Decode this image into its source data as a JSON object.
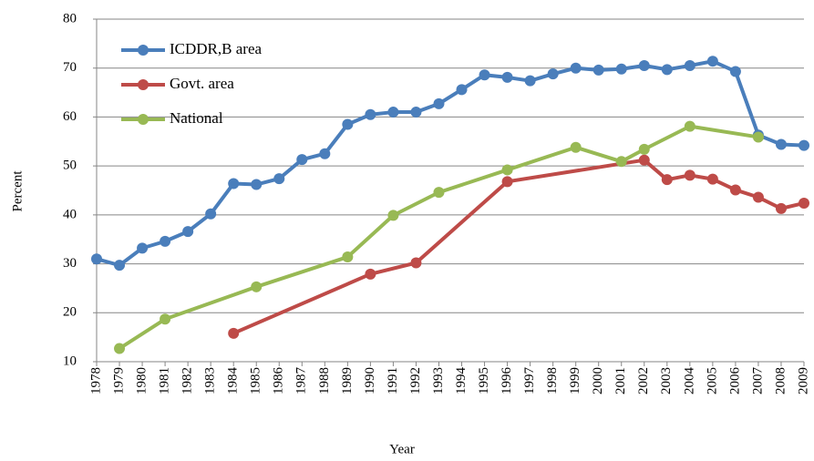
{
  "chart_data": {
    "type": "line",
    "x_label": "Year",
    "y_label": "Percent",
    "xlim": [
      1978,
      2009
    ],
    "xticks": [
      1978,
      1979,
      1980,
      1981,
      1982,
      1983,
      1984,
      1985,
      1986,
      1987,
      1988,
      1989,
      1990,
      1991,
      1992,
      1993,
      1994,
      1995,
      1996,
      1997,
      1998,
      1999,
      2000,
      2001,
      2002,
      2003,
      2004,
      2005,
      2006,
      2007,
      2008,
      2009
    ],
    "ylim": [
      10,
      80
    ],
    "yticks": [
      10,
      20,
      30,
      40,
      50,
      60,
      70,
      80
    ],
    "grid": true,
    "legend": "top-left",
    "series": [
      {
        "name": "ICDDR,B area",
        "color": "#4a7ebb",
        "x": [
          1978,
          1979,
          1980,
          1981,
          1982,
          1983,
          1984,
          1985,
          1986,
          1987,
          1988,
          1989,
          1990,
          1991,
          1992,
          1993,
          1994,
          1995,
          1996,
          1997,
          1998,
          1999,
          2000,
          2001,
          2002,
          2003,
          2004,
          2005,
          2006,
          2007,
          2008,
          2009
        ],
        "values": [
          31,
          29.7,
          33.2,
          34.6,
          36.6,
          40.2,
          46.4,
          46.2,
          47.4,
          51.3,
          52.5,
          58.5,
          60.5,
          61,
          61,
          62.7,
          65.6,
          68.6,
          68.1,
          67.4,
          68.8,
          70,
          69.6,
          69.8,
          70.5,
          69.7,
          70.5,
          71.4,
          69.3,
          56.3,
          54.4,
          54.2
        ]
      },
      {
        "name": "Govt. area",
        "color": "#be4b48",
        "x": [
          1984,
          1990,
          1992,
          1996,
          2002,
          2003,
          2004,
          2005,
          2006,
          2007,
          2008,
          2009
        ],
        "values": [
          15.8,
          27.9,
          30.2,
          46.8,
          51.2,
          47.2,
          48.1,
          47.3,
          45.1,
          43.6,
          41.3,
          42.4
        ]
      },
      {
        "name": "National",
        "color": "#98b954",
        "x": [
          1979,
          1981,
          1985,
          1989,
          1991,
          1993,
          1996,
          1999,
          2001,
          2002,
          2004,
          2007
        ],
        "values": [
          12.7,
          18.7,
          25.3,
          31.4,
          39.9,
          44.6,
          49.2,
          53.8,
          50.9,
          53.4,
          58.1,
          55.9
        ]
      }
    ]
  }
}
